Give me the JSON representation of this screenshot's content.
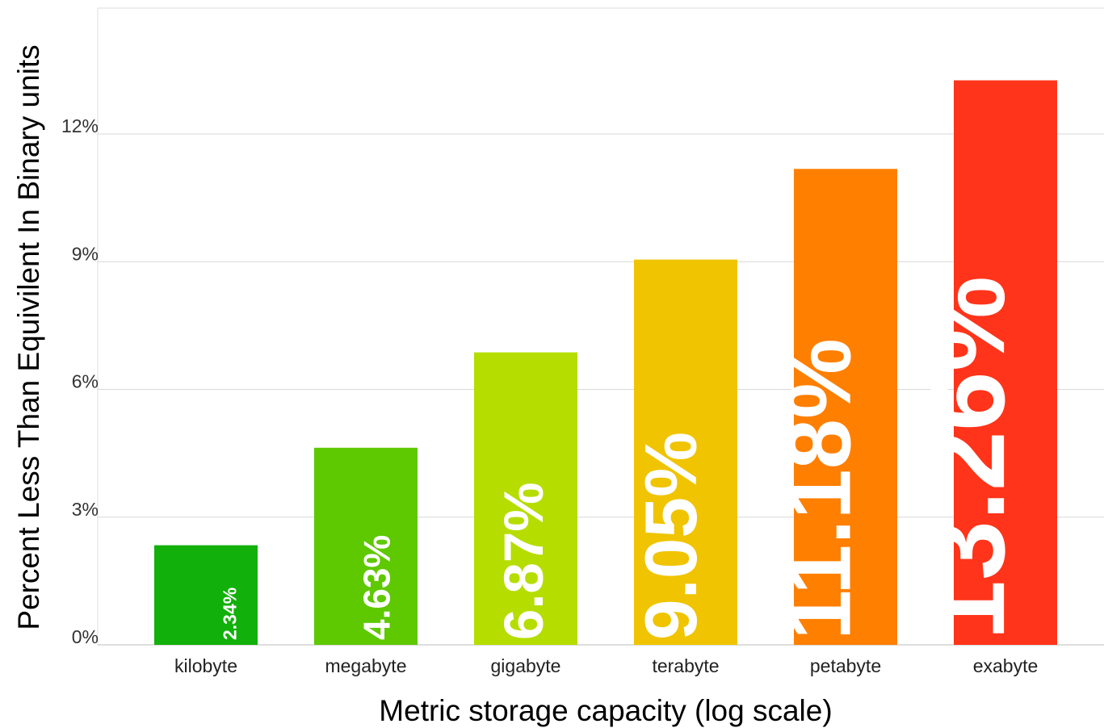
{
  "chart_data": {
    "type": "bar",
    "categories": [
      "kilobyte",
      "megabyte",
      "gigabyte",
      "terabyte",
      "petabyte",
      "exabyte"
    ],
    "values": [
      2.34,
      4.63,
      6.87,
      9.05,
      11.18,
      13.26
    ],
    "data_labels": [
      "2.34%",
      "4.63%",
      "6.87%",
      "9.05%",
      "11.18%",
      "13.26%"
    ],
    "colors": [
      "#12b00a",
      "#5ec800",
      "#b5dd00",
      "#f0c400",
      "#ff7f00",
      "#ff341a"
    ],
    "xlabel": "Metric storage capacity (log scale)",
    "ylabel": "Percent Less Than Equivilent In Binary units",
    "ylim": [
      0,
      15
    ],
    "yticks": [
      0,
      3,
      6,
      9,
      12
    ],
    "ytick_labels": [
      "0%",
      "3%",
      "6%",
      "9%",
      "12%"
    ],
    "grid": true,
    "legend": "none"
  }
}
